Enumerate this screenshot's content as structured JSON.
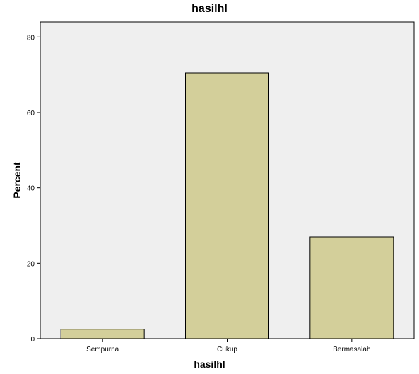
{
  "chart_data": {
    "type": "bar",
    "title": "hasilhl",
    "xlabel": "hasilhl",
    "ylabel": "Percent",
    "categories": [
      "Sempurna",
      "Cukup",
      "Bermasalah"
    ],
    "values": [
      2.5,
      70.5,
      27.0
    ],
    "yticks": [
      0,
      20,
      40,
      60,
      80
    ],
    "ylim": [
      0,
      84
    ],
    "grid": false,
    "legend": "none",
    "colors": {
      "bar_fill": "#d3cf9a",
      "bar_stroke": "#000000",
      "plot_background": "#efefef"
    }
  }
}
